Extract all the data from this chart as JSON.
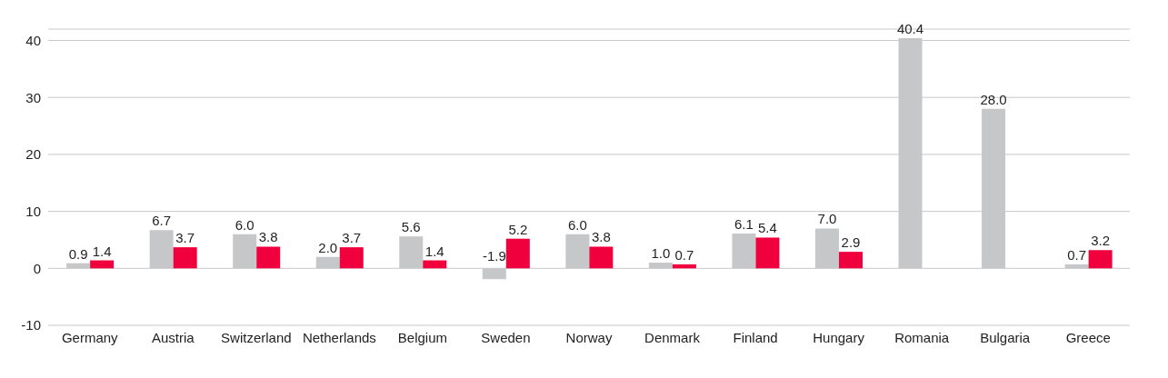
{
  "chart_data": {
    "type": "bar",
    "categories": [
      "Germany",
      "Austria",
      "Switzerland",
      "Netherlands",
      "Belgium",
      "Sweden",
      "Norway",
      "Denmark",
      "Finland",
      "Hungary",
      "Romania",
      "Bulgaria",
      "Greece"
    ],
    "series": [
      {
        "color": "#c6c7c9",
        "values": [
          0.9,
          6.7,
          6.0,
          2.0,
          5.6,
          -1.9,
          6.0,
          1.0,
          6.1,
          7.0,
          40.4,
          28.0,
          0.7
        ],
        "value_labels": [
          "0.9",
          "6.7",
          "6.0",
          "2.0",
          "5.6",
          "-1.9",
          "6.0",
          "1.0",
          "6.1",
          "7.0",
          "40.4",
          "28.0",
          "0.7"
        ]
      },
      {
        "color": "#f0003c",
        "values": [
          1.4,
          3.7,
          3.8,
          3.7,
          1.4,
          5.2,
          3.8,
          0.7,
          5.4,
          2.9,
          null,
          null,
          3.2
        ],
        "value_labels": [
          "1.4",
          "3.7",
          "3.8",
          "3.7",
          "1.4",
          "5.2",
          "3.8",
          "0.7",
          "5.4",
          "2.9",
          null,
          null,
          "3.2"
        ]
      }
    ],
    "ylim": [
      -10,
      42
    ],
    "yticks": [
      -10,
      0,
      10,
      20,
      30,
      40
    ],
    "grid": "y"
  }
}
